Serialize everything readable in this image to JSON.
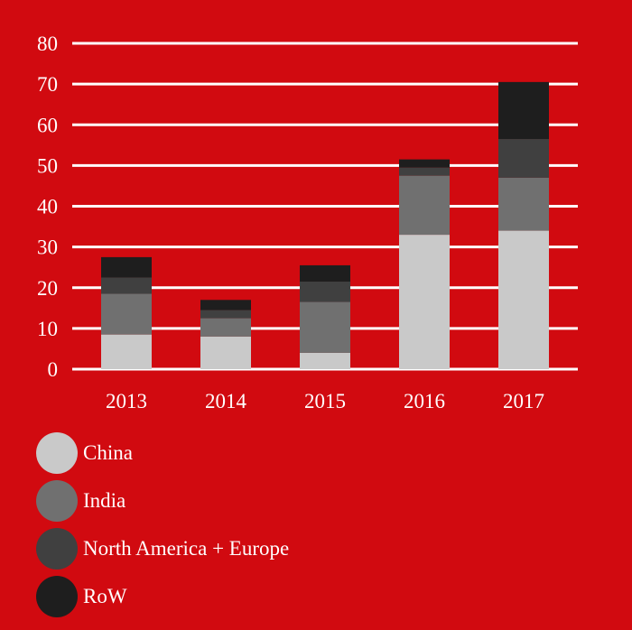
{
  "chart_data": {
    "type": "bar",
    "stacked": true,
    "categories": [
      "2013",
      "2014",
      "2015",
      "2016",
      "2017"
    ],
    "series": [
      {
        "name": "China",
        "color": "#c9c9c9",
        "values": [
          8.5,
          8,
          4,
          33,
          34
        ]
      },
      {
        "name": "India",
        "color": "#707070",
        "values": [
          10,
          4.5,
          12.5,
          14.5,
          13
        ]
      },
      {
        "name": "North America + Europe",
        "color": "#404040",
        "values": [
          4,
          2,
          5,
          2,
          9.5
        ]
      },
      {
        "name": "RoW",
        "color": "#1e1e1e",
        "values": [
          5,
          2.5,
          4,
          2,
          14
        ]
      }
    ],
    "ylim": [
      0,
      80
    ],
    "yticks": [
      "0",
      "10",
      "20",
      "30",
      "40",
      "50",
      "60",
      "70",
      "80"
    ],
    "grid": true,
    "legend_position": "bottom-left",
    "title": "",
    "xlabel": "",
    "ylabel": ""
  },
  "colors": {
    "background": "#d10a10",
    "grid": "#ffffff",
    "text": "#ffffff"
  }
}
